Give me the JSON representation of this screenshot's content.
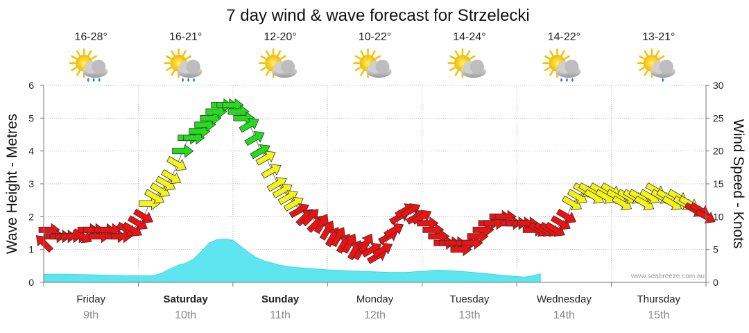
{
  "chart_data": {
    "type": "line",
    "title": "7 day wind & wave forecast for Strzelecki",
    "ylabel_left": "Wave Height - Metres",
    "ylabel_right": "Wind Speed - Knots",
    "ylim_left": [
      0,
      6
    ],
    "ylim_right": [
      0,
      30
    ],
    "yticks_left": [
      "0",
      "1",
      "2",
      "3",
      "4",
      "5",
      "6"
    ],
    "yticks_right": [
      "0",
      "5",
      "10",
      "15",
      "20",
      "25",
      "30"
    ],
    "watermark": "www.seabreeze.com.au",
    "grid": true,
    "days": [
      {
        "name": "Friday",
        "date": "9th",
        "temp": "16-28°",
        "weather": "partly-cloudy-showers",
        "bold": false
      },
      {
        "name": "Saturday",
        "date": "10th",
        "temp": "16-21°",
        "weather": "partly-cloudy-showers",
        "bold": true
      },
      {
        "name": "Sunday",
        "date": "11th",
        "temp": "12-20°",
        "weather": "partly-cloudy",
        "bold": true
      },
      {
        "name": "Monday",
        "date": "12th",
        "temp": "10-22°",
        "weather": "partly-cloudy",
        "bold": false
      },
      {
        "name": "Tuesday",
        "date": "13th",
        "temp": "14-24°",
        "weather": "partly-cloudy",
        "bold": false
      },
      {
        "name": "Wednesday",
        "date": "14th",
        "temp": "14-22°",
        "weather": "partly-cloudy-showers",
        "bold": false
      },
      {
        "name": "Thursday",
        "date": "15th",
        "temp": "13-21°",
        "weather": "partly-cloudy-rain",
        "bold": false
      }
    ],
    "wave_height_m": [
      0.25,
      0.25,
      0.24,
      0.23,
      0.22,
      0.21,
      0.2,
      0.2,
      0.21,
      0.28,
      0.4,
      0.52,
      0.58,
      0.7,
      0.95,
      1.2,
      1.3,
      1.32,
      1.28,
      1.1,
      0.9,
      0.75,
      0.65,
      0.58,
      0.52,
      0.48,
      0.45,
      0.44,
      0.42,
      0.38,
      0.36,
      0.34,
      0.32,
      0.3,
      0.3,
      0.34,
      0.37,
      0.35,
      0.31,
      0.27,
      0.22,
      0.18,
      0.16,
      0.2,
      0.26
    ],
    "wave_time_days": [
      0,
      0.17,
      0.33,
      0.5,
      0.67,
      0.83,
      1.0,
      1.1,
      1.17,
      1.25,
      1.33,
      1.42,
      1.5,
      1.58,
      1.67,
      1.75,
      1.83,
      1.92,
      2.0,
      2.08,
      2.17,
      2.25,
      2.33,
      2.42,
      2.5,
      2.58,
      2.67,
      2.75,
      2.83,
      3.0,
      3.17,
      3.33,
      3.5,
      3.67,
      3.83,
      4.0,
      4.17,
      4.33,
      4.5,
      4.67,
      4.83,
      5.0,
      5.08,
      5.17,
      5.25
    ],
    "wind_knots": [
      6,
      8,
      7,
      7,
      7,
      7,
      7,
      7,
      8,
      8,
      7,
      8,
      8,
      7,
      7,
      8,
      8,
      9,
      10,
      12,
      13,
      14,
      15,
      16,
      18,
      20,
      22,
      22,
      23,
      24,
      25,
      26,
      27,
      27,
      27,
      26,
      25,
      24,
      22,
      20,
      19,
      17,
      15,
      14,
      13,
      12,
      11,
      10,
      10,
      9,
      9,
      8,
      7,
      7,
      6,
      6,
      5,
      5,
      6,
      5,
      4,
      5,
      7,
      8,
      10,
      11,
      11,
      10,
      10,
      9,
      8,
      7,
      6,
      6,
      6,
      5,
      6,
      6,
      7,
      8,
      9,
      9,
      10,
      10,
      9,
      9,
      9,
      9,
      8,
      8,
      8,
      8,
      8,
      9,
      10,
      12,
      13,
      14,
      14,
      13,
      14,
      13,
      14,
      13,
      12,
      13,
      13,
      13,
      12,
      13,
      14,
      13,
      13,
      12,
      13,
      12,
      12,
      11,
      11,
      10
    ],
    "wind_direction_deg": [
      135,
      270,
      270,
      270,
      270,
      270,
      270,
      300,
      270,
      270,
      270,
      270,
      270,
      270,
      270,
      300,
      300,
      300,
      300,
      270,
      300,
      300,
      300,
      300,
      300,
      270,
      270,
      270,
      270,
      270,
      270,
      270,
      270,
      270,
      270,
      270,
      270,
      240,
      240,
      240,
      240,
      240,
      240,
      240,
      240,
      240,
      240,
      225,
      225,
      225,
      210,
      210,
      210,
      210,
      210,
      210,
      210,
      210,
      210,
      240,
      240,
      240,
      240,
      240,
      240,
      240,
      240,
      240,
      240,
      270,
      270,
      270,
      270,
      270,
      270,
      270,
      270,
      270,
      270,
      270,
      270,
      270,
      270,
      270,
      270,
      270,
      270,
      270,
      270,
      300,
      300,
      300,
      300,
      300,
      300,
      300,
      300,
      300,
      300,
      300,
      300,
      300,
      300,
      300,
      300,
      300,
      300,
      300,
      300,
      300,
      300,
      300,
      300,
      300,
      300,
      300,
      300,
      300,
      300,
      300
    ]
  }
}
